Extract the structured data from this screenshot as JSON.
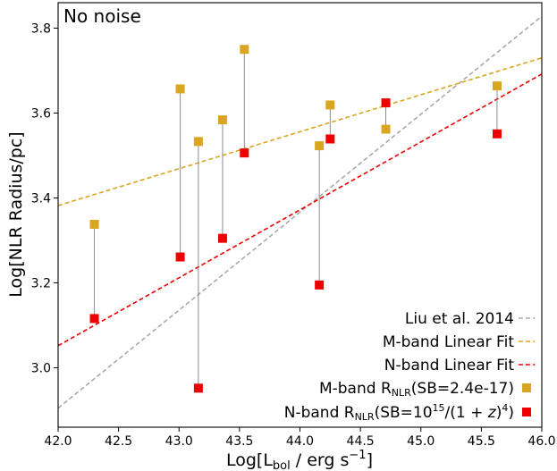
{
  "chart_data": {
    "type": "scatter",
    "annotation": "No noise",
    "xlabel_main": "Log[L",
    "xlabel_sub": "bol",
    "xlabel_rest": " / erg s",
    "xlabel_sup": "−1",
    "xlabel_end": "]",
    "ylabel": "Log[NLR Radius/pc]",
    "xlim": [
      42.0,
      46.0
    ],
    "ylim": [
      2.86,
      3.86
    ],
    "xticks": [
      42.0,
      42.5,
      43.0,
      43.5,
      44.0,
      44.5,
      45.0,
      45.5,
      46.0
    ],
    "xtick_labels": [
      "42.0",
      "42.5",
      "43.0",
      "43.5",
      "44.0",
      "44.5",
      "45.0",
      "45.5",
      "46.0"
    ],
    "yticks": [
      3.0,
      3.2,
      3.4,
      3.6,
      3.8
    ],
    "ytick_labels": [
      "3.0",
      "3.2",
      "3.4",
      "3.6",
      "3.8"
    ],
    "grid": false,
    "legend_position": "lower right",
    "colors": {
      "m_band": "#DAA520",
      "n_band": "#EE0000",
      "liu": "#A9A9A9",
      "connector": "#808080"
    },
    "series": [
      {
        "name": "M-band R_NLR(SB=2.4e-17)",
        "kind": "scatter",
        "points": [
          {
            "x": 42.3,
            "y": 3.338
          },
          {
            "x": 43.01,
            "y": 3.657
          },
          {
            "x": 43.16,
            "y": 3.533
          },
          {
            "x": 43.36,
            "y": 3.584
          },
          {
            "x": 43.54,
            "y": 3.75
          },
          {
            "x": 44.16,
            "y": 3.523
          },
          {
            "x": 44.25,
            "y": 3.619
          },
          {
            "x": 44.71,
            "y": 3.562
          },
          {
            "x": 45.63,
            "y": 3.664
          }
        ]
      },
      {
        "name": "N-band R_NLR(SB=10^15/(1+z)^4)",
        "kind": "scatter",
        "points": [
          {
            "x": 42.3,
            "y": 3.116
          },
          {
            "x": 43.01,
            "y": 3.261
          },
          {
            "x": 43.16,
            "y": 2.952
          },
          {
            "x": 43.36,
            "y": 3.305
          },
          {
            "x": 43.54,
            "y": 3.506
          },
          {
            "x": 44.16,
            "y": 3.195
          },
          {
            "x": 44.25,
            "y": 3.539
          },
          {
            "x": 44.71,
            "y": 3.624
          },
          {
            "x": 45.63,
            "y": 3.551
          }
        ]
      },
      {
        "name": "Liu et al. 2014",
        "kind": "line",
        "x": [
          42.0,
          46.0
        ],
        "y": [
          2.905,
          3.828
        ]
      },
      {
        "name": "M-band Linear Fit",
        "kind": "line",
        "x": [
          42.0,
          46.0
        ],
        "y": [
          3.382,
          3.73
        ]
      },
      {
        "name": "N-band Linear Fit",
        "kind": "line",
        "x": [
          42.0,
          46.0
        ],
        "y": [
          3.052,
          3.692
        ]
      }
    ],
    "legend": [
      {
        "key": "liu",
        "label_main": "Liu et al. 2014"
      },
      {
        "key": "mfit",
        "label_main": "M-band Linear Fit"
      },
      {
        "key": "nfit",
        "label_main": "N-band Linear Fit"
      },
      {
        "key": "mpts",
        "label_main": "M-band R",
        "label_sub": "NLR",
        "label_rest": "(SB=2.4e-17)"
      },
      {
        "key": "npts",
        "label_main": "N-band R",
        "label_sub": "NLR",
        "label_rest": "(SB=10",
        "label_sup": "15",
        "label_rest2": "/(1 + ",
        "label_italic": "z",
        "label_rest3": ")",
        "label_sup2": "4",
        "label_rest4": ")"
      }
    ]
  }
}
